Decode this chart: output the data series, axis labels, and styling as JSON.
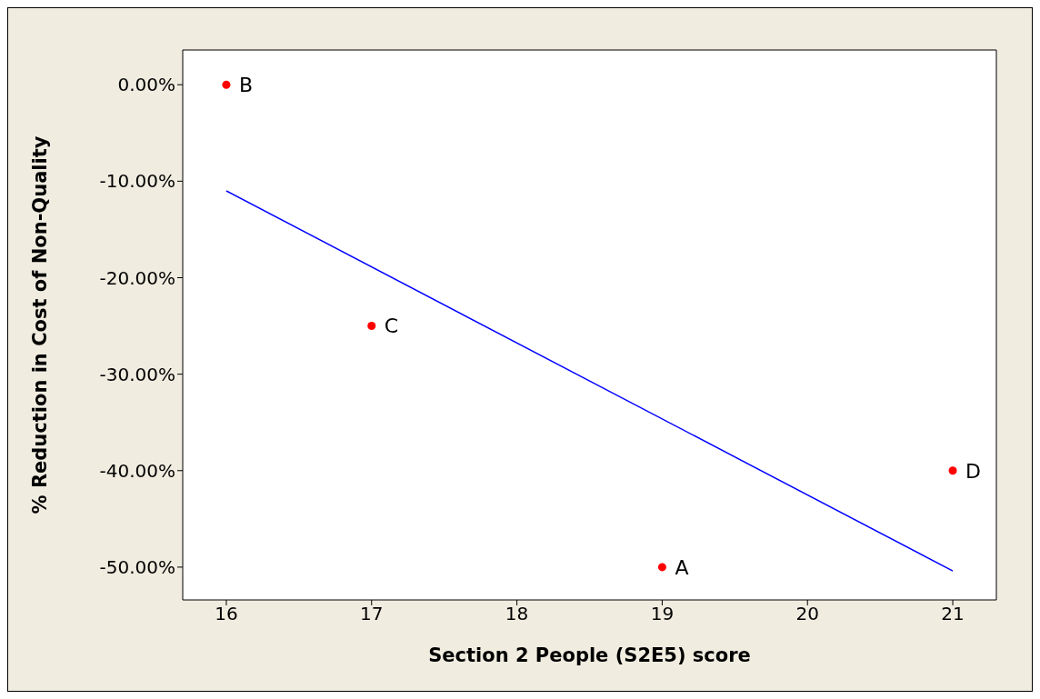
{
  "chart_data": {
    "type": "scatter",
    "xlabel": "Section 2 People (S2E5) score",
    "ylabel": "% Reduction in Cost of Non-Quality",
    "series": [
      {
        "color": "#ff0000",
        "marker": "circle",
        "x": [
          19,
          16,
          17,
          21
        ],
        "values": [
          -50,
          0,
          -25,
          -40
        ]
      },
      {
        "type": "line",
        "color": "#0000ff",
        "marker": "none",
        "x": [
          16,
          21
        ],
        "values": [
          -11,
          -50.4
        ]
      }
    ],
    "annotations": [
      {
        "text": "A",
        "x": 19,
        "y": -50
      },
      {
        "text": "B",
        "x": 16,
        "y": 0
      },
      {
        "text": "C",
        "x": 17,
        "y": -25
      },
      {
        "text": "D",
        "x": 21,
        "y": -40
      }
    ],
    "xlim": [
      15.7,
      21.3
    ],
    "xticks": [
      16,
      17,
      18,
      19,
      20,
      21
    ],
    "ylim": [
      -53.4,
      3.6
    ],
    "yticks": [
      {
        "value": -50,
        "label": "-50.00%"
      },
      {
        "value": -40,
        "label": "-40.00%"
      },
      {
        "value": -30,
        "label": "-30.00%"
      },
      {
        "value": -20,
        "label": "-20.00%"
      },
      {
        "value": -10,
        "label": "-10.00%"
      },
      {
        "value": 0,
        "label": "0.00%"
      }
    ],
    "grid": false
  }
}
